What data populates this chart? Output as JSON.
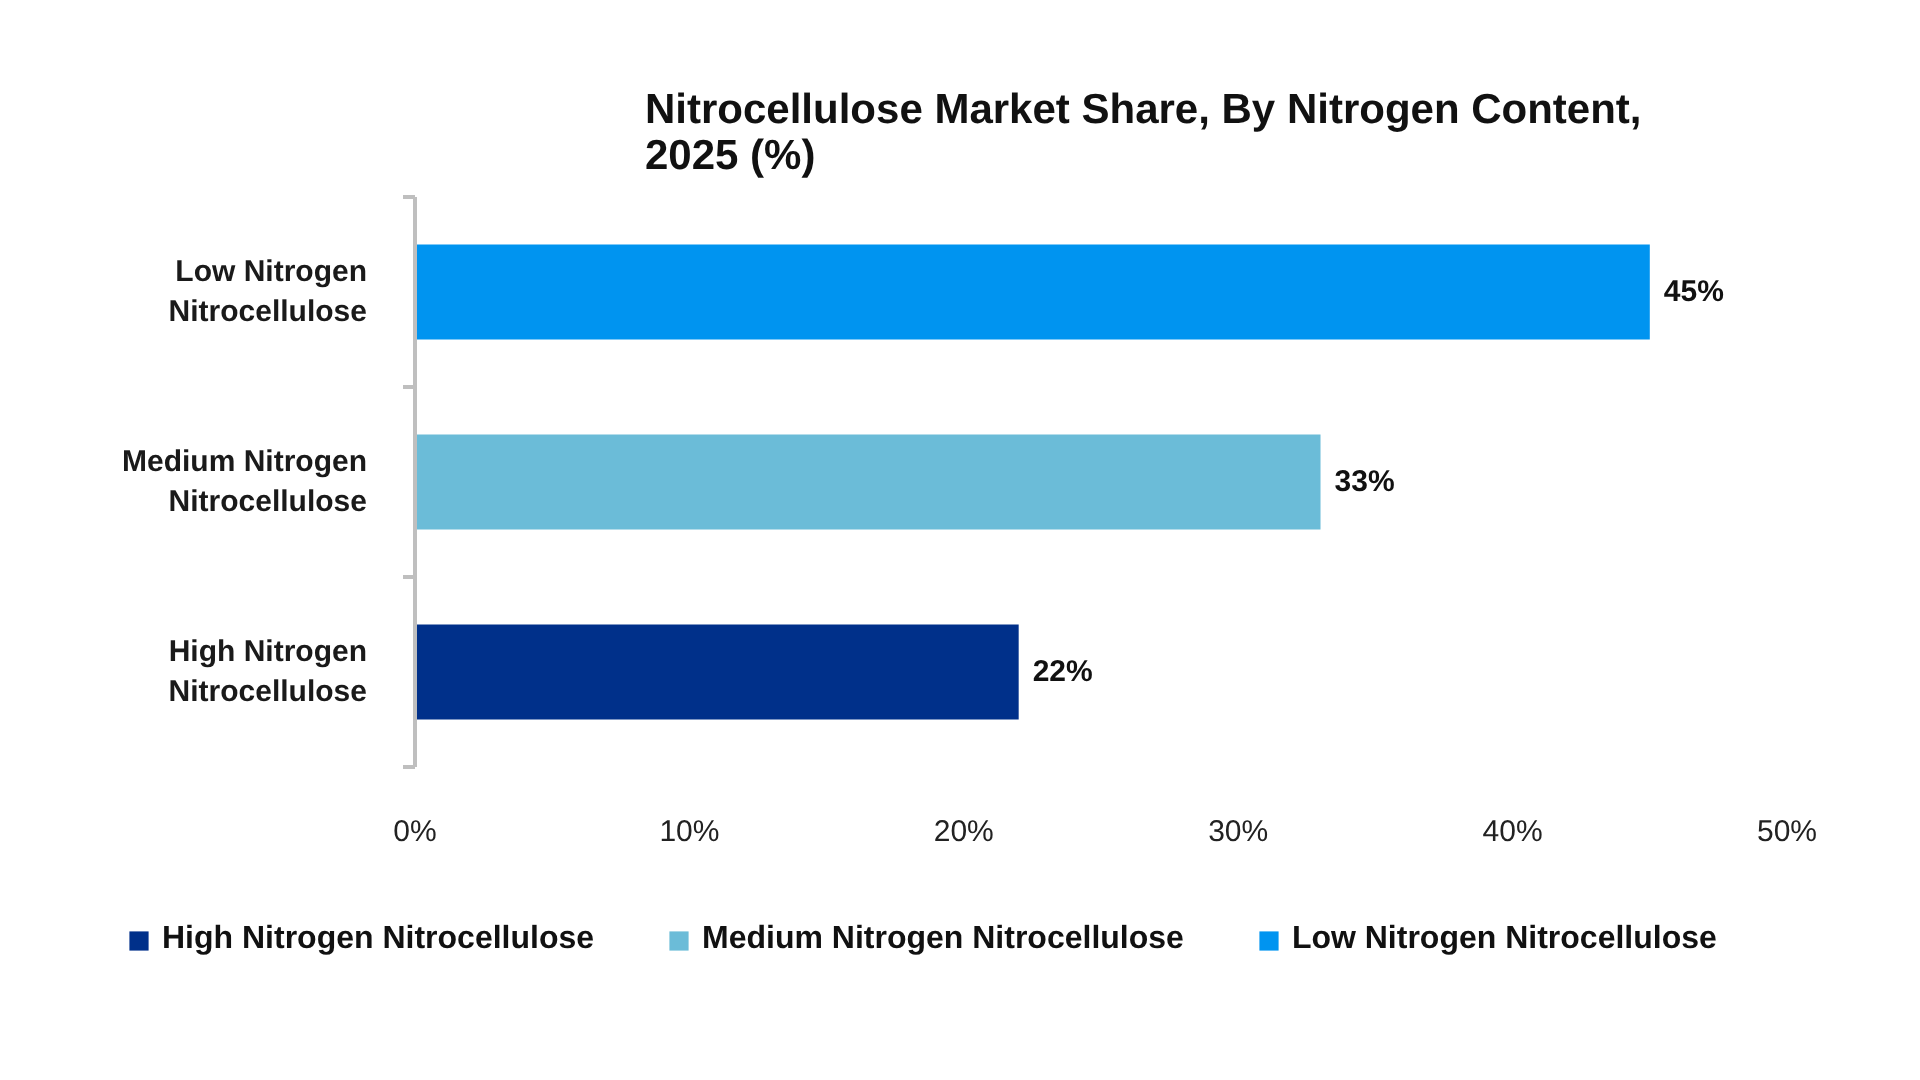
{
  "chart_data": {
    "type": "bar",
    "orientation": "horizontal",
    "title": "Nitrocellulose Market Share, By Nitrogen Content, 2025 (%)",
    "categories": [
      "Low Nitrogen Nitrocellulose",
      "Medium Nitrogen Nitrocellulose",
      "High Nitrogen Nitrocellulose"
    ],
    "series": [
      {
        "name": "High Nitrogen Nitrocellulose",
        "color": "#00308a",
        "values": [
          null,
          null,
          22
        ],
        "value_labels": [
          null,
          null,
          "22%"
        ]
      },
      {
        "name": "Medium Nitrogen Nitrocellulose",
        "color": "#6bbcd8",
        "values": [
          null,
          33,
          null
        ],
        "value_labels": [
          null,
          "33%",
          null
        ]
      },
      {
        "name": "Low Nitrogen Nitrocellulose",
        "color": "#0094f0",
        "values": [
          45,
          null,
          null
        ],
        "value_labels": [
          "45%",
          null,
          null
        ]
      }
    ],
    "xlim": [
      0,
      50
    ],
    "xticks": [
      {
        "value": 0,
        "label": "0%"
      },
      {
        "value": 10,
        "label": "10%"
      },
      {
        "value": 20,
        "label": "20%"
      },
      {
        "value": 30,
        "label": "30%"
      },
      {
        "value": 40,
        "label": "40%"
      },
      {
        "value": 50,
        "label": "50%"
      }
    ],
    "legend": "bottom"
  }
}
